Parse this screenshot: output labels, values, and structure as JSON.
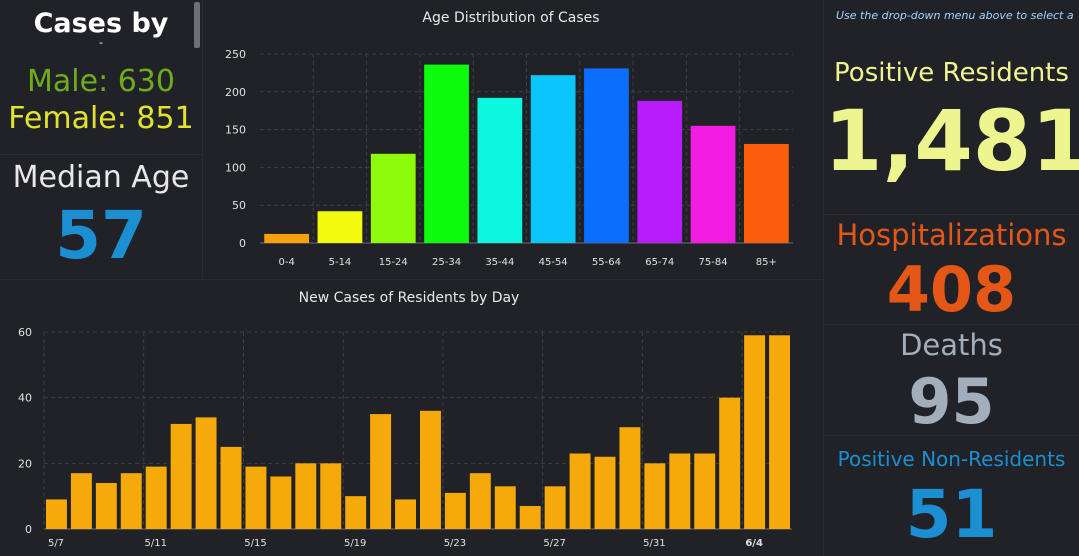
{
  "cases_by": {
    "title": "Cases by",
    "subtitle": "-",
    "male_label": "Male: 630",
    "female_label": "Female: 851",
    "colors": {
      "male": "#6fac1c",
      "female": "#e3e32a"
    }
  },
  "median_age": {
    "label": "Median Age",
    "value": "57"
  },
  "right_panel": {
    "hint": "Use the drop-down menu above to select a",
    "positive_residents_label": "Positive Residents",
    "positive_residents_value": "1,481",
    "hospitalizations_label": "Hospitalizations",
    "hospitalizations_value": "408",
    "deaths_label": "Deaths",
    "deaths_value": "95",
    "non_residents_label": "Positive Non-Residents",
    "non_residents_value": "51"
  },
  "chart_data": [
    {
      "type": "bar",
      "title": "Age Distribution of Cases",
      "categories": [
        "0-4",
        "5-14",
        "15-24",
        "25-34",
        "35-44",
        "45-54",
        "55-64",
        "65-74",
        "75-84",
        "85+"
      ],
      "values": [
        12,
        42,
        118,
        236,
        192,
        222,
        231,
        188,
        155,
        131
      ],
      "colors": [
        "#f7a20c",
        "#f3f90c",
        "#8efb0c",
        "#0dfb0c",
        "#0cf7df",
        "#0cc5fb",
        "#0c6ffb",
        "#b81cfb",
        "#f31ce3",
        "#fb5f0c"
      ],
      "ylim": [
        0,
        250
      ],
      "yticks": [
        0,
        50,
        100,
        150,
        200,
        250
      ],
      "grid": true
    },
    {
      "type": "bar",
      "title": "New Cases of Residents by Day",
      "x": [
        "5/7",
        "5/8",
        "5/9",
        "5/10",
        "5/11",
        "5/12",
        "5/13",
        "5/14",
        "5/15",
        "5/16",
        "5/17",
        "5/18",
        "5/19",
        "5/20",
        "5/21",
        "5/22",
        "5/23",
        "5/24",
        "5/25",
        "5/26",
        "5/27",
        "5/28",
        "5/29",
        "5/30",
        "5/31",
        "6/1",
        "6/2",
        "6/3",
        "6/4",
        "6/5"
      ],
      "values": [
        9,
        17,
        14,
        17,
        19,
        32,
        34,
        25,
        19,
        16,
        20,
        20,
        10,
        35,
        9,
        36,
        11,
        17,
        13,
        7,
        13,
        23,
        22,
        31,
        20,
        23,
        23,
        40,
        59,
        59
      ],
      "color": "#f5a90a",
      "xtick_labels": [
        "5/7",
        "5/11",
        "5/15",
        "5/19",
        "5/23",
        "5/27",
        "5/31",
        "6/4"
      ],
      "highlight_label": "6/4",
      "ylim": [
        0,
        60
      ],
      "yticks": [
        0,
        20,
        40,
        60
      ],
      "grid": true
    }
  ]
}
